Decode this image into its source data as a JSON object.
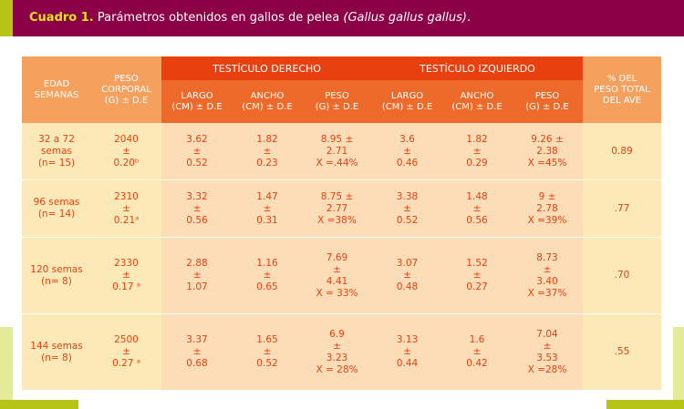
{
  "caption": {
    "number": "Cuadro 1.",
    "text": "Parámetros obtenidos en gallos de pelea",
    "scientific_name": "(Gallus gallus gallus)",
    "suffix": "."
  },
  "table": {
    "headers": {
      "age": [
        "EDAD",
        "SEMANAS"
      ],
      "body_weight": [
        "PESO",
        "CORPORAL",
        "(G) ± D.E"
      ],
      "right_testicle": "TESTÍCULO DERECHO",
      "left_testicle": "TESTÍCULO IZQUIERDO",
      "percent_weight": [
        "% DEL",
        "PESO TOTAL",
        "DEL AVE"
      ],
      "length": [
        "LARGO",
        "(CM) ± D.E"
      ],
      "width": [
        "ANCHO",
        "(CM) ± D.E"
      ],
      "weight": [
        "PESO",
        "(G) ± D.E"
      ]
    },
    "rows": [
      {
        "age": [
          "32 a 72",
          "semas",
          "(n= 15)"
        ],
        "body_weight": [
          "2040",
          "±",
          "0.20ᵇ"
        ],
        "r_length": [
          "3.62",
          "±",
          "0.52"
        ],
        "r_width": [
          "1.82",
          "±",
          "0.23"
        ],
        "r_weight": [
          "8.95 ±",
          "2.71",
          "X =.44%"
        ],
        "l_length": [
          "3.6",
          "±",
          "0.46"
        ],
        "l_width": [
          "1.82",
          "±",
          "0.29"
        ],
        "l_weight": [
          "9.26 ±",
          "2.38",
          "X =45%"
        ],
        "percent": "0.89"
      },
      {
        "age": [
          "96 semas",
          "(n= 14)"
        ],
        "body_weight": [
          "2310",
          "±",
          "0.21ᵃ"
        ],
        "r_length": [
          "3.32",
          "±",
          "0.56"
        ],
        "r_width": [
          "1.47",
          "±",
          "0.31"
        ],
        "r_weight": [
          "8.75 ±",
          "2.77",
          "X =38%"
        ],
        "l_length": [
          "3.38",
          "±",
          "0.52"
        ],
        "l_width": [
          "1.48",
          "±",
          "0.56"
        ],
        "l_weight": [
          "9 ±",
          "2.78",
          "X =39%"
        ],
        "percent": ".77"
      },
      {
        "age": [
          "120 semas",
          "(n= 8)"
        ],
        "body_weight": [
          "2330",
          "±",
          "0.17 ᵃ"
        ],
        "r_length": [
          "2.88",
          "±",
          "1.07"
        ],
        "r_width": [
          "1.16",
          "±",
          "0.65"
        ],
        "r_weight": [
          "7.69",
          "±",
          "4.41",
          "X = 33%"
        ],
        "l_length": [
          "3.07",
          "±",
          "0.48"
        ],
        "l_width": [
          "1.52",
          "±",
          "0.27"
        ],
        "l_weight": [
          "8.73",
          "±",
          "3.40",
          "X =37%"
        ],
        "percent": ".70"
      },
      {
        "age": [
          "144 semas",
          "(n= 8)"
        ],
        "body_weight": [
          "2500",
          "±",
          "0.27 ᵃ"
        ],
        "r_length": [
          "3.37",
          "±",
          "0.68"
        ],
        "r_width": [
          "1.65",
          "±",
          "0.52"
        ],
        "r_weight": [
          "6.9",
          "±",
          "3.23",
          "X = 28%"
        ],
        "l_length": [
          "3.13",
          "±",
          "0.44"
        ],
        "l_width": [
          "1.6",
          "±",
          "0.42"
        ],
        "l_weight": [
          "7.04",
          "±",
          "3.53",
          "X =28%"
        ],
        "percent": ".55"
      }
    ]
  },
  "colors": {
    "title_bar": "#8b0046",
    "accent_green": "#b5c416",
    "pale_green": "#e5ea99",
    "header_dark_orange": "#e8410f",
    "header_mid_orange": "#ee6a2a",
    "header_light_orange": "#f6a05e",
    "body_side": "#fde9b8",
    "body_mid": "#fddcb8",
    "text_orange": "#e8410f"
  }
}
